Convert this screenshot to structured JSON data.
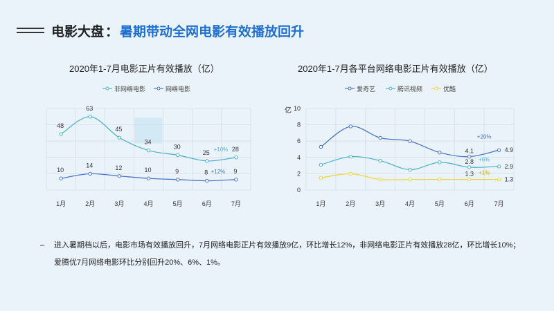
{
  "header": {
    "main": "电影大盘",
    "separator": "：",
    "sub": "暑期带动全网电影有效播放回升"
  },
  "colors": {
    "non_network": "#4fb3cf",
    "network": "#4a74c4",
    "iqiyi": "#4a74c4",
    "tencent": "#4fb3cf",
    "youku": "#f2d33c",
    "title_accent": "#1e6fd0"
  },
  "chart_data": [
    {
      "type": "line",
      "title": "2020年1-7月电影正片有效播放（亿）",
      "categories": [
        "1月",
        "2月",
        "3月",
        "4月",
        "5月",
        "6月",
        "7月"
      ],
      "series": [
        {
          "name": "非网络电影",
          "values": [
            48,
            63,
            45,
            34,
            30,
            25,
            28
          ],
          "labels": [
            "48",
            "63",
            "45",
            "34",
            "30",
            "25",
            "28"
          ]
        },
        {
          "name": "网络电影",
          "values": [
            10,
            14,
            12,
            10,
            9,
            8,
            9
          ],
          "labels": [
            "10",
            "14",
            "12",
            "10",
            "9",
            "8",
            "9"
          ]
        }
      ],
      "annotations": [
        "+10%",
        "+12%"
      ],
      "ylim": [
        0,
        70
      ],
      "grid": true,
      "legend": "top"
    },
    {
      "type": "line",
      "title": "2020年1-7月各平台网络电影正片有效播放（亿）",
      "categories": [
        "1月",
        "2月",
        "3月",
        "4月",
        "5月",
        "6月",
        "7月"
      ],
      "ylabel": "亿",
      "y_ticks": [
        "0",
        "2",
        "4",
        "6",
        "8",
        "10"
      ],
      "ylim": [
        0,
        10
      ],
      "series": [
        {
          "name": "爱奇艺",
          "values": [
            5.3,
            7.8,
            6.4,
            6.0,
            4.6,
            4.1,
            4.9
          ],
          "labels": [
            "4.1",
            "4.9"
          ]
        },
        {
          "name": "腾讯视频",
          "values": [
            3.1,
            4.1,
            3.6,
            2.5,
            3.4,
            2.8,
            2.9
          ],
          "labels": [
            "2.8",
            "2.9"
          ]
        },
        {
          "name": "优酷",
          "values": [
            1.5,
            2.0,
            1.3,
            1.3,
            1.3,
            1.3,
            1.3
          ],
          "labels": [
            "1.3",
            "1.3"
          ]
        }
      ],
      "annotations": [
        "+20%",
        "+6%",
        "+1%"
      ],
      "grid": true,
      "legend": "top"
    }
  ],
  "footer": {
    "bullet": "–",
    "text": "进入暑期档以后，电影市场有效播放回升，7月网络电影正片有效播放9亿，环比增长12%，非网络电影正片有效播放28亿，环比增长10%；爱腾优7月网络电影环比分别回升20%、6%、1%。"
  }
}
